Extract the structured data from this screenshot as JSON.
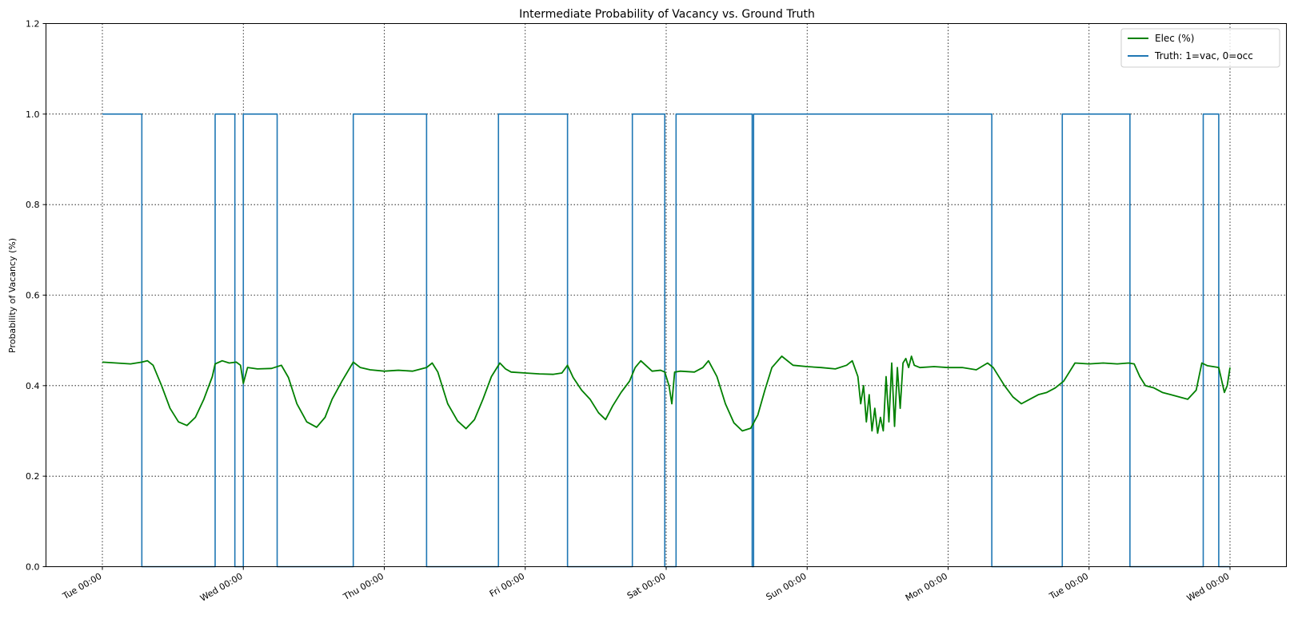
{
  "chart_data": {
    "type": "line",
    "title": "Intermediate Probability of Vacancy vs. Ground Truth",
    "xlabel": "",
    "ylabel": "Probability of Vacancy (%)",
    "ylim": [
      0.0,
      1.2
    ],
    "yticks": [
      "0.0",
      "0.2",
      "0.4",
      "0.6",
      "0.8",
      "1.0",
      "1.2"
    ],
    "xlim_days": [
      -0.4,
      8.4
    ],
    "xticks": [
      {
        "day": 0,
        "label": "Tue 00:00"
      },
      {
        "day": 1,
        "label": "Wed 00:00"
      },
      {
        "day": 2,
        "label": "Thu 00:00"
      },
      {
        "day": 3,
        "label": "Fri 00:00"
      },
      {
        "day": 4,
        "label": "Sat 00:00"
      },
      {
        "day": 5,
        "label": "Sun 00:00"
      },
      {
        "day": 6,
        "label": "Mon 00:00"
      },
      {
        "day": 7,
        "label": "Tue 00:00"
      },
      {
        "day": 8,
        "label": "Wed 00:00"
      }
    ],
    "grid": true,
    "legend_position": "top-right",
    "series": [
      {
        "name": "Elec (%)",
        "color": "#008000",
        "x": [
          0.0,
          0.1,
          0.2,
          0.28,
          0.32,
          0.36,
          0.42,
          0.48,
          0.54,
          0.6,
          0.66,
          0.72,
          0.78,
          0.8,
          0.85,
          0.9,
          0.95,
          0.98,
          1.0,
          1.03,
          1.1,
          1.2,
          1.27,
          1.32,
          1.38,
          1.45,
          1.52,
          1.58,
          1.63,
          1.7,
          1.78,
          1.83,
          1.9,
          2.0,
          2.1,
          2.2,
          2.3,
          2.34,
          2.38,
          2.45,
          2.52,
          2.58,
          2.64,
          2.7,
          2.76,
          2.82,
          2.86,
          2.9,
          3.0,
          3.1,
          3.2,
          3.26,
          3.3,
          3.34,
          3.4,
          3.46,
          3.52,
          3.57,
          3.62,
          3.68,
          3.74,
          3.78,
          3.82,
          3.9,
          3.96,
          3.99,
          4.02,
          4.04,
          4.06,
          4.1,
          4.2,
          4.26,
          4.3,
          4.36,
          4.42,
          4.48,
          4.54,
          4.6,
          4.65,
          4.7,
          4.75,
          4.82,
          4.9,
          5.0,
          5.1,
          5.2,
          5.28,
          5.32,
          5.36,
          5.38,
          5.4,
          5.42,
          5.44,
          5.46,
          5.48,
          5.5,
          5.52,
          5.54,
          5.56,
          5.58,
          5.6,
          5.62,
          5.64,
          5.66,
          5.68,
          5.7,
          5.72,
          5.74,
          5.76,
          5.8,
          5.9,
          6.0,
          6.1,
          6.2,
          6.28,
          6.32,
          6.4,
          6.46,
          6.52,
          6.58,
          6.64,
          6.7,
          6.76,
          6.82,
          6.9,
          7.0,
          7.1,
          7.2,
          7.28,
          7.32,
          7.36,
          7.4,
          7.46,
          7.52,
          7.58,
          7.64,
          7.7,
          7.76,
          7.8,
          7.84,
          7.88,
          7.92,
          7.96,
          7.98,
          8.0
        ],
        "values": [
          0.452,
          0.45,
          0.448,
          0.452,
          0.455,
          0.445,
          0.4,
          0.35,
          0.32,
          0.312,
          0.33,
          0.37,
          0.42,
          0.448,
          0.455,
          0.45,
          0.452,
          0.445,
          0.405,
          0.44,
          0.437,
          0.438,
          0.445,
          0.418,
          0.36,
          0.32,
          0.308,
          0.33,
          0.37,
          0.41,
          0.452,
          0.44,
          0.435,
          0.432,
          0.434,
          0.432,
          0.44,
          0.45,
          0.43,
          0.36,
          0.322,
          0.305,
          0.325,
          0.37,
          0.42,
          0.45,
          0.437,
          0.43,
          0.428,
          0.426,
          0.425,
          0.428,
          0.445,
          0.418,
          0.39,
          0.37,
          0.34,
          0.325,
          0.355,
          0.385,
          0.41,
          0.44,
          0.455,
          0.432,
          0.434,
          0.43,
          0.4,
          0.36,
          0.43,
          0.432,
          0.43,
          0.44,
          0.455,
          0.42,
          0.36,
          0.318,
          0.3,
          0.306,
          0.335,
          0.39,
          0.44,
          0.465,
          0.445,
          0.442,
          0.44,
          0.437,
          0.445,
          0.455,
          0.42,
          0.36,
          0.4,
          0.32,
          0.38,
          0.3,
          0.35,
          0.295,
          0.33,
          0.3,
          0.42,
          0.32,
          0.45,
          0.31,
          0.44,
          0.35,
          0.45,
          0.46,
          0.44,
          0.465,
          0.445,
          0.44,
          0.442,
          0.44,
          0.44,
          0.435,
          0.45,
          0.44,
          0.4,
          0.375,
          0.36,
          0.37,
          0.38,
          0.385,
          0.395,
          0.41,
          0.45,
          0.448,
          0.45,
          0.448,
          0.45,
          0.448,
          0.42,
          0.4,
          0.395,
          0.385,
          0.38,
          0.375,
          0.37,
          0.39,
          0.45,
          0.444,
          0.442,
          0.44,
          0.385,
          0.4,
          0.44
        ]
      },
      {
        "name": "Truth: 1=vac, 0=occ",
        "color": "#1f77b4",
        "step": true,
        "x": [
          0.0,
          0.28,
          0.28,
          0.8,
          0.8,
          0.94,
          0.94,
          1.0,
          1.0,
          1.24,
          1.24,
          1.78,
          1.78,
          2.3,
          2.3,
          2.81,
          2.81,
          3.3,
          3.3,
          3.76,
          3.76,
          3.99,
          3.99,
          4.07,
          4.07,
          4.61,
          4.61,
          4.62,
          4.62,
          6.31,
          6.31,
          6.81,
          6.81,
          7.29,
          7.29,
          7.81,
          7.81,
          7.92,
          7.92,
          8.0
        ],
        "values": [
          1,
          1,
          0,
          0,
          1,
          1,
          0,
          0,
          1,
          1,
          0,
          0,
          1,
          1,
          0,
          0,
          1,
          1,
          0,
          0,
          1,
          1,
          0,
          0,
          1,
          1,
          0,
          0,
          1,
          1,
          0,
          0,
          1,
          1,
          0,
          0,
          1,
          1,
          0,
          0
        ]
      }
    ]
  }
}
